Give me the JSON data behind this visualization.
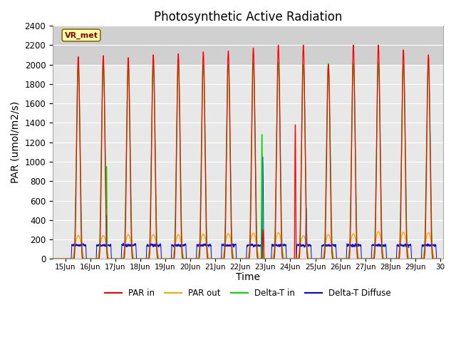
{
  "title": "Photosynthetic Active Radiation",
  "ylabel": "PAR (umol/m2/s)",
  "xlabel": "Time",
  "annotation": "VR_met",
  "ylim": [
    0,
    2400
  ],
  "yticks": [
    0,
    200,
    400,
    600,
    800,
    1000,
    1200,
    1400,
    1600,
    1800,
    2000,
    2200,
    2400
  ],
  "xlim_start": 14.5,
  "xlim_end": 30.1,
  "xtick_positions": [
    15,
    16,
    17,
    18,
    19,
    20,
    21,
    22,
    23,
    24,
    25,
    26,
    27,
    28,
    29,
    30
  ],
  "xtick_labels": [
    "15Jun",
    "16Jun",
    "17Jun",
    "18Jun",
    "19Jun",
    "20Jun",
    "21Jun",
    "22Jun",
    "23Jun",
    "24Jun",
    "25Jun",
    "26Jun",
    "27Jun",
    "28Jun",
    "29Jun",
    "30"
  ],
  "legend_labels": [
    "PAR in",
    "PAR out",
    "Delta-T in",
    "Delta-T Diffuse"
  ],
  "colors": {
    "PAR_in": "#ff0000",
    "PAR_out": "#ffa500",
    "Delta_T_in": "#00dd00",
    "Delta_T_Diffuse": "#0000ff"
  },
  "background_color": "#e8e8e8",
  "background_color_upper": "#d0d0d0",
  "fig_background": "#ffffff",
  "grid_color": "#ffffff",
  "title_fontsize": 12,
  "axis_fontsize": 10,
  "par_in_peaks": [
    2080,
    2090,
    2070,
    2100,
    2110,
    2130,
    2140,
    2170,
    2200,
    2200,
    2000,
    2200,
    2200,
    2150,
    2100
  ],
  "par_out_peaks": [
    240,
    240,
    250,
    250,
    250,
    255,
    260,
    265,
    270,
    240,
    250,
    260,
    280,
    275,
    270
  ],
  "delta_t_in_peaks": [
    1980,
    2000,
    1990,
    1995,
    2000,
    1995,
    2000,
    2010,
    2020,
    2000,
    2010,
    2010,
    2020,
    2005,
    2000
  ]
}
